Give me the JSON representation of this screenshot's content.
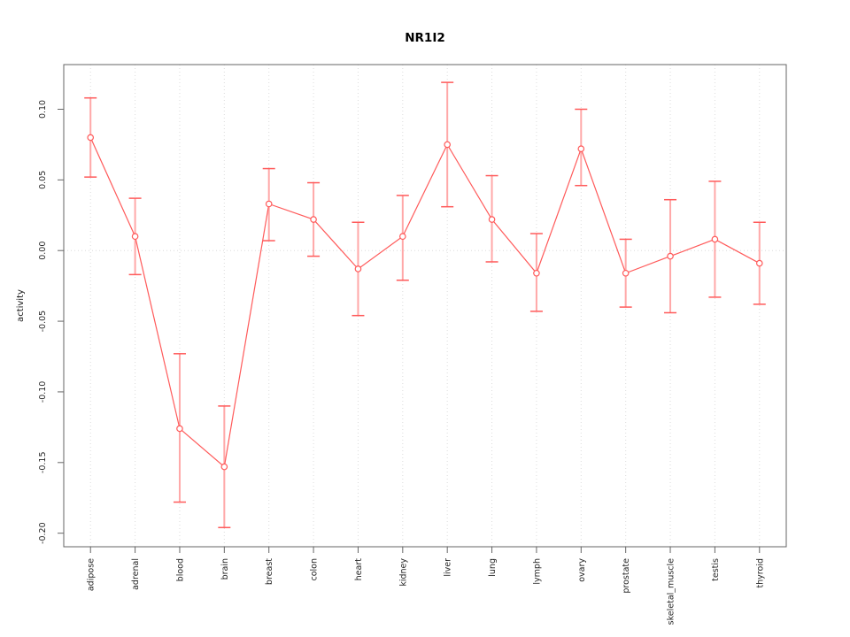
{
  "chart_data": {
    "type": "line",
    "title": "NR1I2",
    "xlabel": "",
    "ylabel": "activity",
    "legend": "none",
    "point_style": "open-circle",
    "error_bars": true,
    "categories": [
      "adipose",
      "adrenal",
      "blood",
      "brain",
      "breast",
      "colon",
      "heart",
      "kidney",
      "liver",
      "lung",
      "lymph",
      "ovary",
      "prostate",
      "skeletal_muscle",
      "testis",
      "thyroid"
    ],
    "values": [
      0.08,
      0.01,
      -0.126,
      -0.153,
      0.033,
      0.022,
      -0.013,
      0.01,
      0.075,
      0.022,
      -0.016,
      0.072,
      -0.016,
      -0.004,
      0.008,
      -0.009
    ],
    "ci_low": [
      0.052,
      -0.017,
      -0.178,
      -0.196,
      0.007,
      -0.004,
      -0.046,
      -0.021,
      0.031,
      -0.008,
      -0.043,
      0.046,
      -0.04,
      -0.044,
      -0.033,
      -0.038
    ],
    "ci_high": [
      0.108,
      0.037,
      -0.073,
      -0.11,
      0.058,
      0.048,
      0.02,
      0.039,
      0.119,
      0.053,
      0.012,
      0.1,
      0.008,
      0.036,
      0.049,
      0.02
    ],
    "ylim": [
      -0.2096,
      0.1316
    ],
    "yticks": [
      -0.2,
      -0.15,
      -0.1,
      -0.05,
      0.0,
      0.05,
      0.1
    ],
    "ytick_labels": [
      "-0.20",
      "-0.15",
      "-0.10",
      "-0.05",
      "0.00",
      "0.05",
      "0.10"
    ],
    "grid": {
      "vertical_per_category": true,
      "horizontal_zero_line": true,
      "style": "dotted"
    },
    "colors": {
      "series": "#ff5a5a",
      "error_stem": "#ffa8a8",
      "error_cap": "#ff5a5a",
      "grid": "#dcdcdc",
      "axis": "#666666",
      "text": "#262626",
      "title": "#000000",
      "background": "#ffffff"
    }
  }
}
